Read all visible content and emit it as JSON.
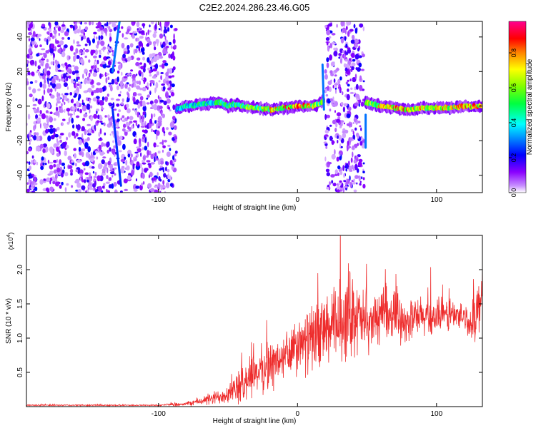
{
  "title": "C2E2.2024.286.23.46.G05",
  "chart_data": [
    {
      "type": "heatmap",
      "xlabel": "Height of straight line (km)",
      "ylabel": "Frequency (Hz)",
      "xlim": [
        -195,
        133
      ],
      "ylim": [
        -50,
        49
      ],
      "x_ticks": [
        -100,
        0,
        100
      ],
      "y_ticks": [
        -40,
        -20,
        0,
        20,
        40
      ],
      "colorbar": {
        "label": "Normalized spectral amplitude",
        "range": [
          0,
          0.98
        ],
        "ticks": [
          "0.0",
          "0.2",
          "0.4",
          "0.6",
          "0.8"
        ],
        "tick_values": [
          0,
          0.2,
          0.4,
          0.6,
          0.8
        ],
        "colors": [
          "#ffffff",
          "#a000ff",
          "#0000ff",
          "#00ffff",
          "#00ff00",
          "#ffff00",
          "#ff0000",
          "#ff00a0"
        ]
      },
      "noise_regions_km": [
        [
          -195,
          -87
        ],
        [
          20,
          48
        ]
      ],
      "ridge": {
        "x_km": [
          -87,
          -80,
          -70,
          -60,
          -55,
          -50,
          -45,
          -40,
          -30,
          -20,
          -10,
          0,
          10,
          15,
          18,
          50,
          55,
          60,
          70,
          80,
          90,
          100,
          110,
          120,
          133
        ],
        "freq_hz": [
          -2,
          0,
          1,
          2,
          2,
          0,
          1,
          0,
          -1,
          -2,
          -1,
          0,
          0,
          1,
          3,
          2,
          1,
          0,
          -1,
          -2,
          -1,
          -1,
          -1,
          0,
          0
        ],
        "amplitude": [
          0.45,
          0.5,
          0.55,
          0.5,
          0.6,
          0.55,
          0.6,
          0.6,
          0.7,
          0.8,
          0.85,
          0.9,
          0.8,
          0.7,
          0.6,
          0.6,
          0.75,
          0.85,
          0.9,
          0.85,
          0.8,
          0.85,
          0.8,
          0.9,
          0.85
        ]
      },
      "streaks": [
        {
          "x_km": [
            -128,
            -133
          ],
          "freq_hz": [
            49,
            20
          ],
          "amplitude": 0.3
        },
        {
          "x_km": [
            -133,
            -127
          ],
          "freq_hz": [
            -2,
            -46
          ],
          "amplitude": 0.25
        },
        {
          "x_km": [
            18,
            19
          ],
          "freq_hz": [
            24,
            -2
          ],
          "amplitude": 0.3
        },
        {
          "x_km": [
            49,
            49
          ],
          "freq_hz": [
            -5,
            -24
          ],
          "amplitude": 0.3
        }
      ]
    },
    {
      "type": "line",
      "xlabel": "Height of straight line (km)",
      "ylabel": "SNR (10 * v/v)",
      "y_multiplier": "(x10",
      "y_multiplier_exp": "4",
      "y_multiplier_close": ")",
      "xlim": [
        -195,
        133
      ],
      "ylim": [
        0,
        2.5
      ],
      "x_ticks": [
        -100,
        0,
        100
      ],
      "y_ticks": [
        0.5,
        1.0,
        1.5,
        2.0
      ],
      "y_tick_labels": [
        "0.5",
        "1.0",
        "1.5",
        "2.0"
      ],
      "series": [
        {
          "color": "#ee2c2c",
          "x": [
            -195,
            -100,
            -80,
            -70,
            -60,
            -50,
            -40,
            -35,
            -30,
            -20,
            -10,
            0,
            10,
            20,
            30,
            35,
            40,
            45,
            50,
            60,
            70,
            80,
            90,
            100,
            110,
            120,
            125,
            128,
            131,
            133
          ],
          "y": [
            0.02,
            0.02,
            0.04,
            0.08,
            0.12,
            0.2,
            0.3,
            0.45,
            0.5,
            0.6,
            0.7,
            0.85,
            1.0,
            1.1,
            1.2,
            1.35,
            1.4,
            1.25,
            1.2,
            1.3,
            1.35,
            1.25,
            1.3,
            1.3,
            1.35,
            1.3,
            1.2,
            1.35,
            1.5,
            1.55
          ],
          "spread": [
            0.01,
            0.01,
            0.03,
            0.06,
            0.1,
            0.15,
            0.25,
            0.35,
            0.3,
            0.35,
            0.35,
            0.4,
            0.45,
            0.5,
            0.6,
            0.7,
            0.6,
            0.5,
            0.4,
            0.35,
            0.35,
            0.3,
            0.3,
            0.25,
            0.25,
            0.2,
            0.25,
            0.35,
            0.35,
            0.3
          ]
        }
      ]
    }
  ]
}
